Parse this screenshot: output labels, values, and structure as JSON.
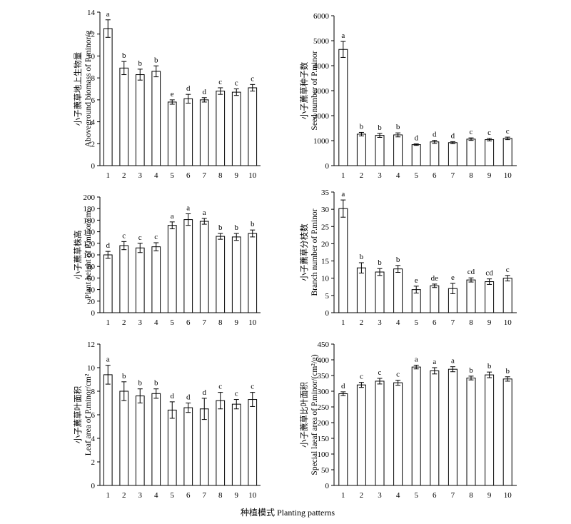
{
  "figure": {
    "xlabel": "种植模式 Planting patterns"
  },
  "chart_data": [
    {
      "type": "bar",
      "categories": [
        "1",
        "2",
        "3",
        "4",
        "5",
        "6",
        "7",
        "8",
        "9",
        "10"
      ],
      "values": [
        12.5,
        8.9,
        8.3,
        8.6,
        5.8,
        6.1,
        6.0,
        6.8,
        6.7,
        7.1
      ],
      "errors": [
        0.8,
        0.6,
        0.5,
        0.5,
        0.2,
        0.4,
        0.2,
        0.3,
        0.3,
        0.3
      ],
      "sig_letters": [
        "a",
        "b",
        "b",
        "b",
        "e",
        "d",
        "d",
        "c",
        "c",
        "c"
      ],
      "ylabel_cn": "小子藨草地上生物量",
      "ylabel_en": "Aboveground biomass of P.minor/g",
      "ylim": [
        0,
        14
      ],
      "yticks": [
        0,
        2,
        4,
        6,
        8,
        10,
        12,
        14
      ],
      "grid": false
    },
    {
      "type": "bar",
      "categories": [
        "1",
        "2",
        "3",
        "4",
        "5",
        "6",
        "7",
        "8",
        "9",
        "10"
      ],
      "values": [
        4650,
        1260,
        1210,
        1230,
        840,
        950,
        920,
        1060,
        1040,
        1090
      ],
      "errors": [
        320,
        70,
        80,
        80,
        30,
        60,
        40,
        50,
        50,
        50
      ],
      "sig_letters": [
        "a",
        "b",
        "b",
        "b",
        "d",
        "d",
        "d",
        "c",
        "c",
        "c"
      ],
      "ylabel_cn": "小子藨草种子数",
      "ylabel_en": "Seed number of P.minor",
      "ylim": [
        0,
        6000
      ],
      "yticks": [
        0,
        1000,
        2000,
        3000,
        4000,
        5000,
        6000
      ],
      "grid": false
    },
    {
      "type": "bar",
      "categories": [
        "1",
        "2",
        "3",
        "4",
        "5",
        "6",
        "7",
        "8",
        "9",
        "10"
      ],
      "values": [
        100,
        116,
        112,
        114,
        151,
        161,
        158,
        132,
        131,
        137
      ],
      "errors": [
        6,
        7,
        8,
        7,
        6,
        10,
        5,
        5,
        6,
        6
      ],
      "sig_letters": [
        "d",
        "c",
        "c",
        "c",
        "a",
        "a",
        "a",
        "b",
        "b",
        "b"
      ],
      "ylabel_cn": "小子藨草株高",
      "ylabel_en": "Plant height of P.minor/cm",
      "ylim": [
        0,
        200
      ],
      "yticks": [
        0,
        20,
        40,
        60,
        80,
        100,
        120,
        140,
        160,
        180,
        200
      ],
      "grid": false
    },
    {
      "type": "bar",
      "categories": [
        "1",
        "2",
        "3",
        "4",
        "5",
        "6",
        "7",
        "8",
        "9",
        "10"
      ],
      "values": [
        30.2,
        13.0,
        11.8,
        12.7,
        6.7,
        7.8,
        7.0,
        9.5,
        9.0,
        10.0
      ],
      "errors": [
        2.5,
        1.5,
        1.0,
        1.0,
        1.0,
        0.5,
        1.5,
        0.6,
        0.8,
        0.8
      ],
      "sig_letters": [
        "a",
        "b",
        "b",
        "b",
        "e",
        "de",
        "e",
        "cd",
        "cd",
        "c"
      ],
      "ylabel_cn": "小子藨草分枝数",
      "ylabel_en": "Branch number of P.minor",
      "ylim": [
        0,
        35
      ],
      "yticks": [
        0,
        5,
        10,
        15,
        20,
        25,
        30,
        35
      ],
      "grid": false
    },
    {
      "type": "bar",
      "categories": [
        "1",
        "2",
        "3",
        "4",
        "5",
        "6",
        "7",
        "8",
        "9",
        "10"
      ],
      "values": [
        9.4,
        8.0,
        7.6,
        7.8,
        6.4,
        6.6,
        6.5,
        7.2,
        6.9,
        7.3
      ],
      "errors": [
        0.8,
        0.8,
        0.6,
        0.4,
        0.7,
        0.4,
        0.9,
        0.7,
        0.4,
        0.6
      ],
      "sig_letters": [
        "a",
        "b",
        "b",
        "b",
        "d",
        "d",
        "d",
        "c",
        "c",
        "c"
      ],
      "ylabel_cn": "小子藨草叶面积",
      "ylabel_en": "Leaf  area of P.minor/cm²",
      "ylim": [
        0,
        12
      ],
      "yticks": [
        0,
        2,
        4,
        6,
        8,
        10,
        12
      ],
      "grid": false
    },
    {
      "type": "bar",
      "categories": [
        "1",
        "2",
        "3",
        "4",
        "5",
        "6",
        "7",
        "8",
        "9",
        "10"
      ],
      "values": [
        292,
        320,
        332,
        327,
        377,
        365,
        370,
        342,
        352,
        339
      ],
      "errors": [
        6,
        8,
        9,
        8,
        6,
        10,
        8,
        6,
        9,
        7
      ],
      "sig_letters": [
        "d",
        "c",
        "c",
        "c",
        "a",
        "a",
        "a",
        "b",
        "b",
        "b"
      ],
      "ylabel_cn": "小子藨草比叶面积",
      "ylabel_en": "Special laeaf  area of P.minor/(cm²/g)",
      "ylim": [
        0,
        450
      ],
      "yticks": [
        0,
        50,
        100,
        150,
        200,
        250,
        300,
        350,
        400,
        450
      ],
      "grid": false
    }
  ]
}
